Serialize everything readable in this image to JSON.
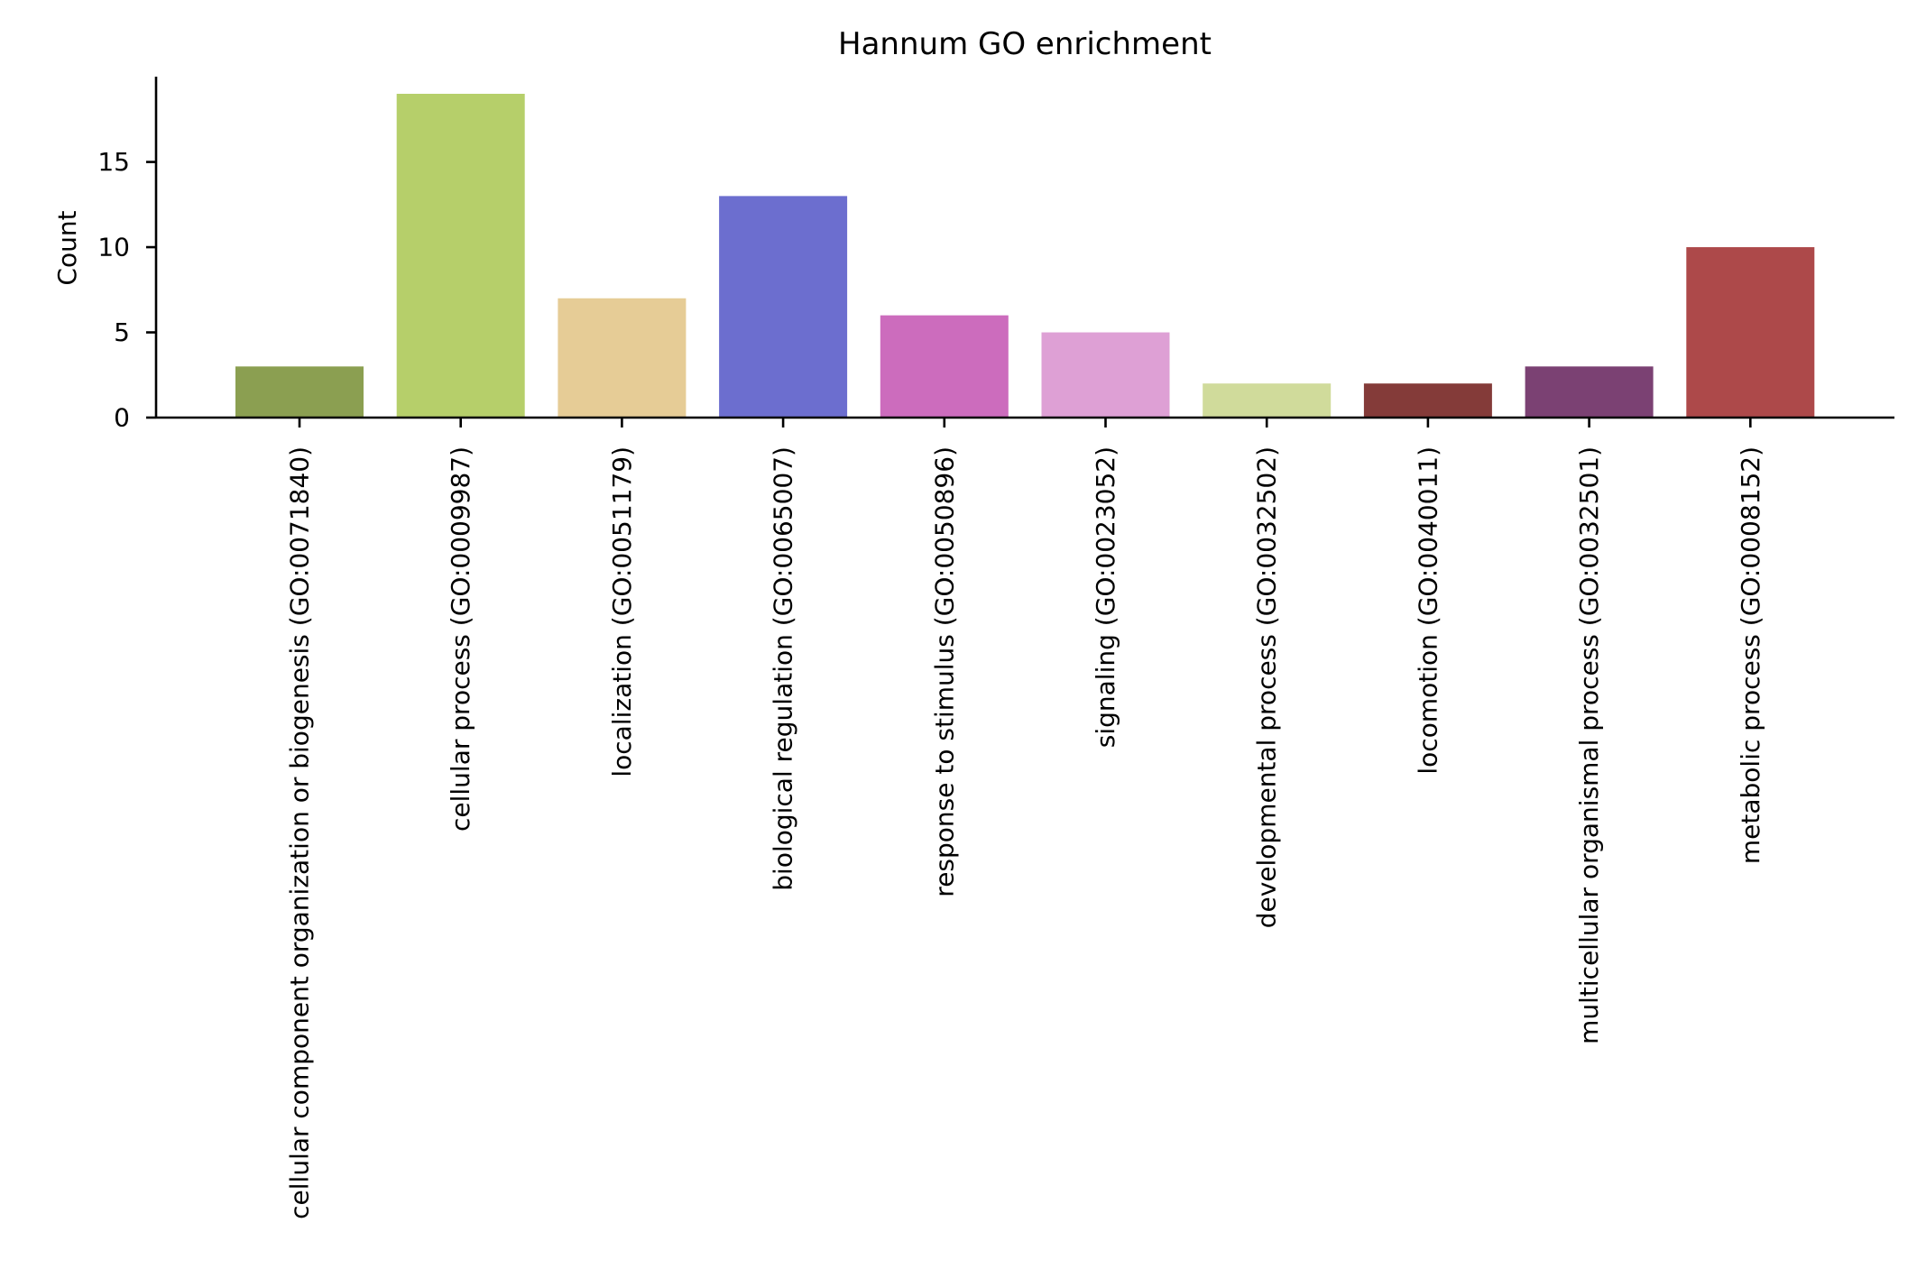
{
  "chart_data": {
    "type": "bar",
    "title": "Hannum GO enrichment",
    "xlabel": "",
    "ylabel": "Count",
    "ylim": [
      0,
      20
    ],
    "yticks": [
      0,
      5,
      10,
      15
    ],
    "grid": false,
    "categories": [
      "cellular component organization or biogenesis (GO:0071840)",
      "cellular process (GO:0009987)",
      "localization (GO:0051179)",
      "biological regulation (GO:0065007)",
      "response to stimulus (GO:0050896)",
      "signaling (GO:0023052)",
      "developmental process (GO:0032502)",
      "locomotion (GO:0040011)",
      "multicellular organismal process (GO:0032501)",
      "metabolic process (GO:0008152)"
    ],
    "values": [
      3,
      19,
      7,
      13,
      6,
      5,
      2,
      2,
      3,
      10
    ],
    "colors": [
      "#8b9f51",
      "#b6cf6a",
      "#e6cc96",
      "#6c6ecf",
      "#cc6cbd",
      "#dea0d5",
      "#d0db9b",
      "#843b39",
      "#7b4173",
      "#ad494a"
    ]
  }
}
